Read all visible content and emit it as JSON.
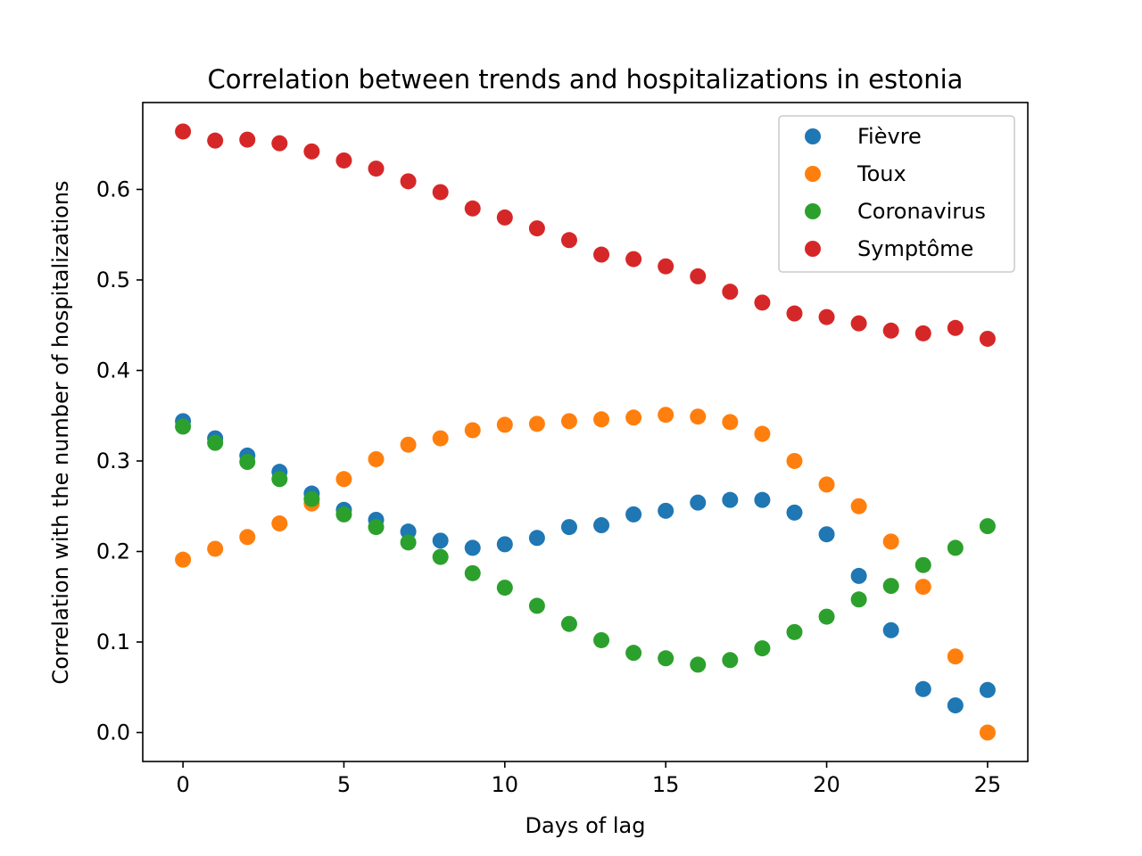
{
  "chart_data": {
    "type": "scatter",
    "title": "Correlation between trends and hospitalizations in estonia",
    "xlabel": "Days of lag",
    "ylabel": "Correlation with the number of hospitalizations",
    "xlim": [
      -1.25,
      26.25
    ],
    "ylim": [
      -0.032,
      0.696
    ],
    "xticks": [
      0,
      5,
      10,
      15,
      20,
      25
    ],
    "xtick_labels": [
      "0",
      "5",
      "10",
      "15",
      "20",
      "25"
    ],
    "yticks": [
      0.0,
      0.1,
      0.2,
      0.3,
      0.4,
      0.5,
      0.6
    ],
    "ytick_labels": [
      "0.0",
      "0.1",
      "0.2",
      "0.3",
      "0.4",
      "0.5",
      "0.6"
    ],
    "grid": false,
    "legend_position": "top-right",
    "x": [
      0,
      1,
      2,
      3,
      4,
      5,
      6,
      7,
      8,
      9,
      10,
      11,
      12,
      13,
      14,
      15,
      16,
      17,
      18,
      19,
      20,
      21,
      22,
      23,
      24,
      25
    ],
    "series": [
      {
        "name": "Fièvre",
        "color": "#1f77b4",
        "values": [
          0.344,
          0.325,
          0.306,
          0.288,
          0.264,
          0.246,
          0.235,
          0.222,
          0.212,
          0.204,
          0.208,
          0.215,
          0.227,
          0.229,
          0.241,
          0.245,
          0.254,
          0.257,
          0.257,
          0.243,
          0.219,
          0.173,
          0.113,
          0.048,
          0.03,
          0.047
        ]
      },
      {
        "name": "Toux",
        "color": "#ff7f0e",
        "values": [
          0.191,
          0.203,
          0.216,
          0.231,
          0.253,
          0.28,
          0.302,
          0.318,
          0.325,
          0.334,
          0.34,
          0.341,
          0.344,
          0.346,
          0.348,
          0.351,
          0.349,
          0.343,
          0.33,
          0.3,
          0.274,
          0.25,
          0.211,
          0.161,
          0.084,
          0.0
        ]
      },
      {
        "name": "Coronavirus",
        "color": "#2ca02c",
        "values": [
          0.338,
          0.32,
          0.299,
          0.28,
          0.258,
          0.241,
          0.227,
          0.21,
          0.194,
          0.176,
          0.16,
          0.14,
          0.12,
          0.102,
          0.088,
          0.082,
          0.075,
          0.08,
          0.093,
          0.111,
          0.128,
          0.147,
          0.162,
          0.185,
          0.204,
          0.228
        ]
      },
      {
        "name": "Symptôme",
        "color": "#d62728",
        "values": [
          0.664,
          0.654,
          0.655,
          0.651,
          0.642,
          0.632,
          0.623,
          0.609,
          0.597,
          0.579,
          0.569,
          0.557,
          0.544,
          0.528,
          0.523,
          0.515,
          0.504,
          0.487,
          0.475,
          0.463,
          0.459,
          0.452,
          0.444,
          0.441,
          0.447,
          0.435
        ]
      }
    ]
  }
}
